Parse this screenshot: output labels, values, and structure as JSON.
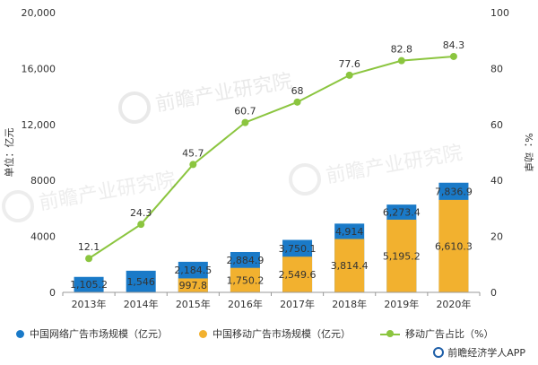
{
  "chart_data": {
    "type": "bar",
    "categories": [
      "2013年",
      "2014年",
      "2015年",
      "2016年",
      "2017年",
      "2018年",
      "2019年",
      "2020年"
    ],
    "series": [
      {
        "name": "中国网络广告市场规模（亿元）",
        "kind": "bar",
        "axis": "left",
        "values": [
          1105.2,
          1546,
          2184.5,
          2884.9,
          3750.1,
          4914,
          6273.4,
          7836.9
        ],
        "labels": [
          "1,105.2",
          "1,546",
          "2,184.5",
          "2,884.9",
          "3,750.1",
          "4,914",
          "6,273.4",
          "7,836.9"
        ]
      },
      {
        "name": "中国移动广告市场规模（亿元）",
        "kind": "bar",
        "axis": "left",
        "values": [
          null,
          null,
          997.8,
          1750.2,
          2549.6,
          3814.4,
          5195.2,
          6610.3
        ],
        "labels": [
          "",
          "",
          "997.8",
          "1,750.2",
          "2,549.6",
          "3,814.4",
          "5,195.2",
          "6,610.3"
        ]
      },
      {
        "name": "移动广告占比（%）",
        "kind": "line",
        "axis": "right",
        "values": [
          12.1,
          24.3,
          45.7,
          60.7,
          68,
          77.6,
          82.8,
          84.3
        ],
        "labels": [
          "12.1",
          "24.3",
          "45.7",
          "60.7",
          "68",
          "77.6",
          "82.8",
          "84.3"
        ]
      }
    ],
    "ylabel": "单位：亿元",
    "ylabel_right": "%：动卓",
    "ylim": [
      0,
      20000
    ],
    "ylim_right": [
      0,
      100
    ],
    "yticks": [
      "0",
      "4000",
      "8000",
      "12,000",
      "16,000",
      "20,000"
    ],
    "yticks_right": [
      "0",
      "20",
      "40",
      "60",
      "80",
      "100"
    ],
    "colors": {
      "network": "#1a7ac8",
      "mobile": "#f2b12f",
      "line": "#8bc53f"
    },
    "legend_position": "bottom"
  },
  "legend": {
    "network": "中国网络广告市场规模（亿元）",
    "mobile": "中国移动广告市场规模（亿元）",
    "ratio": "移动广告占比（%）"
  },
  "source": "前瞻经济学人APP",
  "watermark": "前瞻产业研究院"
}
